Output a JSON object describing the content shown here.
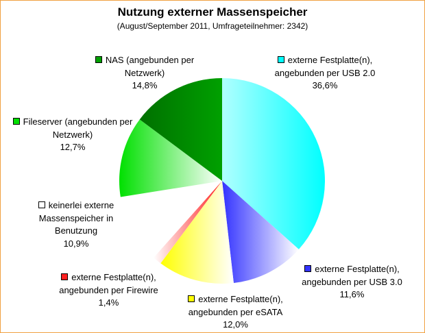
{
  "chart_data": {
    "type": "pie",
    "title": "Nutzung externer Massenspeicher",
    "subtitle": "(August/September 2011, Umfrageteilnehmer: 2342)",
    "categories": [
      "externe Festplatte(n), angebunden per USB 2.0",
      "externe Festplatte(n), angebunden per USB 3.0",
      "externe Festplatte(n), angebunden per eSATA",
      "externe Festplatte(n), angebunden per Firewire",
      "keinerlei externe Massenspeicher in Benutzung",
      "Fileserver (angebunden per Netzwerk)",
      "NAS (angebunden per Netzwerk)"
    ],
    "values": [
      36.6,
      11.6,
      12.0,
      1.4,
      10.9,
      12.7,
      14.8
    ],
    "value_labels": [
      "36,6%",
      "11,6%",
      "12,0%",
      "1,4%",
      "10,9%",
      "12,7%",
      "14,8%"
    ],
    "colors": [
      "#00ffff",
      "#3333ff",
      "#ffff00",
      "#ff2020",
      "#ffffff",
      "#00e000",
      "#00a000"
    ]
  }
}
